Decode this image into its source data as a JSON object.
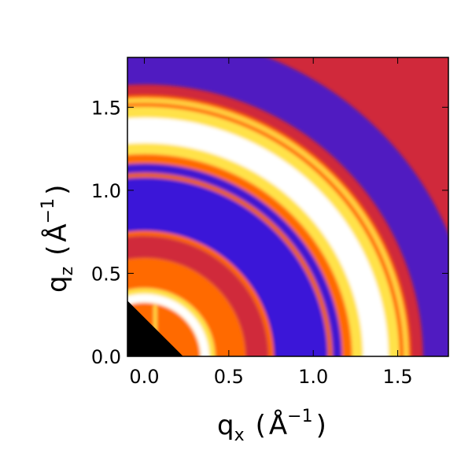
{
  "chart_data": {
    "type": "heatmap",
    "title": "",
    "colormap": "gnuplot2-like (black → blue → red → orange → yellow → white)",
    "xlim": [
      -0.1,
      1.8
    ],
    "ylim": [
      0.0,
      1.8
    ],
    "x_ticks": [
      {
        "value": 0.0,
        "label": "0.0"
      },
      {
        "value": 0.5,
        "label": "0.5"
      },
      {
        "value": 1.0,
        "label": "1.0"
      },
      {
        "value": 1.5,
        "label": "1.5"
      }
    ],
    "y_ticks": [
      {
        "value": 0.0,
        "label": "0.0"
      },
      {
        "value": 0.5,
        "label": "0.5"
      },
      {
        "value": 1.0,
        "label": "1.0"
      },
      {
        "value": 1.5,
        "label": "1.5"
      }
    ],
    "xlabel": {
      "main": "q",
      "sub": "x",
      "unit_open": "(",
      "unit": "Å",
      "unit_exp": "−1",
      "unit_close": ")"
    },
    "ylabel": {
      "main": "q",
      "sub": "z",
      "unit_open": "(",
      "unit": "Å",
      "unit_exp": "−1",
      "unit_close": ")"
    },
    "rings": [
      {
        "q": 0.36,
        "width": 0.06,
        "intensity": "high"
      },
      {
        "q": 0.75,
        "width": 0.03,
        "intensity": "medium"
      },
      {
        "q": 1.1,
        "width": 0.03,
        "intensity": "medium"
      },
      {
        "q": 1.37,
        "width": 0.16,
        "intensity": "very high"
      },
      {
        "q": 1.55,
        "width": 0.03,
        "intensity": "medium"
      }
    ],
    "colors": {
      "background": "#d0293b",
      "low": "#3a16d8",
      "mid": "#ff6a00",
      "high": "#ffe24a",
      "peak": "#ffffff",
      "masked": "#000000"
    }
  }
}
